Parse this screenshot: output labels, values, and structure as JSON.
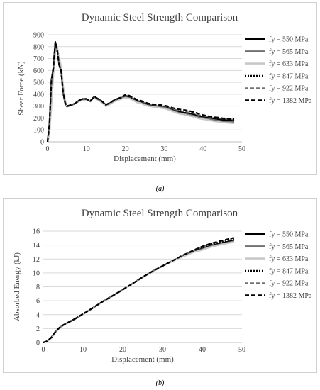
{
  "captions": [
    "(a)",
    "(b)"
  ],
  "chart_data": [
    {
      "type": "line",
      "title": "Dynamic Steel Strength Comparison",
      "xlabel": "Displacement (mm)",
      "ylabel": "Shear Force (kN)",
      "xlim": [
        0,
        50
      ],
      "ylim": [
        0,
        900
      ],
      "xticks": [
        0,
        10,
        20,
        30,
        40,
        50
      ],
      "yticks": [
        0,
        100,
        200,
        300,
        400,
        500,
        600,
        700,
        800,
        900
      ],
      "grid": "horizontal",
      "legend_position": "right",
      "x": [
        0,
        0.5,
        1,
        1.5,
        2,
        2.5,
        3,
        3.5,
        4,
        4.5,
        5,
        5.5,
        6,
        7,
        8,
        9,
        10,
        11,
        12,
        13,
        14,
        15,
        16,
        17,
        18,
        19,
        20,
        21,
        22,
        23,
        24,
        25,
        26,
        27,
        28,
        29,
        30,
        31,
        32,
        33,
        34,
        35,
        36,
        37,
        38,
        39,
        40,
        41,
        42,
        43,
        44,
        45,
        46,
        47,
        48
      ],
      "series": [
        {
          "name": "fy = 550 MPa",
          "color": "#000000",
          "dash": "solid",
          "width": 2.2,
          "values": [
            0,
            150,
            520,
            620,
            840,
            770,
            650,
            600,
            420,
            330,
            300,
            305,
            310,
            320,
            345,
            360,
            360,
            340,
            380,
            360,
            340,
            310,
            325,
            345,
            360,
            370,
            380,
            375,
            360,
            340,
            335,
            320,
            310,
            305,
            300,
            298,
            295,
            285,
            270,
            260,
            250,
            245,
            240,
            235,
            225,
            215,
            210,
            205,
            200,
            195,
            190,
            185,
            185,
            180,
            175
          ]
        },
        {
          "name": "fy = 565 MPa",
          "color": "#707070",
          "dash": "solid",
          "width": 2,
          "values": [
            0,
            120,
            500,
            600,
            820,
            760,
            640,
            590,
            410,
            325,
            295,
            300,
            305,
            320,
            340,
            355,
            355,
            340,
            375,
            355,
            335,
            305,
            320,
            340,
            355,
            365,
            375,
            370,
            355,
            335,
            330,
            315,
            305,
            300,
            295,
            292,
            290,
            278,
            265,
            252,
            242,
            238,
            230,
            225,
            215,
            205,
            200,
            195,
            188,
            182,
            178,
            172,
            170,
            168,
            165
          ]
        },
        {
          "name": "fy = 633 MPa",
          "color": "#c8c8c8",
          "dash": "solid",
          "width": 2.2,
          "values": [
            0,
            60,
            300,
            560,
            750,
            800,
            700,
            640,
            480,
            360,
            300,
            300,
            305,
            320,
            340,
            350,
            355,
            345,
            370,
            350,
            330,
            300,
            315,
            335,
            350,
            360,
            370,
            365,
            350,
            330,
            325,
            310,
            300,
            295,
            290,
            285,
            280,
            270,
            258,
            245,
            235,
            230,
            222,
            215,
            205,
            195,
            190,
            185,
            178,
            172,
            168,
            162,
            160,
            158,
            155
          ]
        },
        {
          "name": "fy = 847 MPa",
          "color": "#000000",
          "dash": "2,2",
          "width": 2,
          "values": [
            0,
            140,
            510,
            615,
            835,
            765,
            645,
            595,
            415,
            328,
            298,
            303,
            308,
            320,
            343,
            358,
            358,
            342,
            378,
            358,
            338,
            310,
            325,
            345,
            360,
            372,
            388,
            380,
            365,
            345,
            340,
            325,
            315,
            310,
            305,
            303,
            300,
            290,
            278,
            268,
            258,
            252,
            248,
            242,
            232,
            222,
            215,
            210,
            205,
            200,
            196,
            192,
            190,
            188,
            185
          ]
        },
        {
          "name": "fy = 922 MPa",
          "color": "#707070",
          "dash": "5,3",
          "width": 1.6,
          "values": [
            0,
            135,
            505,
            610,
            830,
            762,
            642,
            592,
            412,
            326,
            296,
            301,
            306,
            320,
            341,
            356,
            356,
            341,
            376,
            356,
            336,
            308,
            322,
            342,
            358,
            370,
            392,
            385,
            368,
            348,
            342,
            328,
            318,
            312,
            308,
            305,
            302,
            292,
            280,
            270,
            262,
            255,
            250,
            245,
            235,
            225,
            218,
            212,
            208,
            202,
            198,
            194,
            192,
            190,
            188
          ]
        },
        {
          "name": "fy = 1382 MPa",
          "color": "#000000",
          "dash": "6,3",
          "width": 2.2,
          "values": [
            0,
            145,
            515,
            618,
            838,
            768,
            648,
            598,
            418,
            330,
            300,
            304,
            309,
            322,
            346,
            361,
            361,
            344,
            380,
            361,
            341,
            312,
            328,
            348,
            362,
            375,
            395,
            388,
            372,
            352,
            346,
            332,
            322,
            316,
            312,
            310,
            306,
            298,
            286,
            278,
            272,
            268,
            262,
            255,
            245,
            235,
            225,
            218,
            212,
            207,
            203,
            198,
            196,
            192,
            190
          ]
        }
      ]
    },
    {
      "type": "line",
      "title": "Dynamic Steel Strength Comparison",
      "xlabel": "Displacement (mm)",
      "ylabel": "Absorbed Energy (kJ)",
      "xlim": [
        0,
        50
      ],
      "ylim": [
        0,
        16
      ],
      "xticks": [
        0,
        10,
        20,
        30,
        40,
        50
      ],
      "yticks": [
        0,
        2,
        4,
        6,
        8,
        10,
        12,
        14,
        16
      ],
      "grid": "horizontal",
      "legend_position": "right",
      "x": [
        0,
        1,
        2,
        3,
        4,
        5,
        6,
        8,
        10,
        12,
        15,
        18,
        20,
        22,
        25,
        28,
        30,
        32,
        35,
        38,
        40,
        42,
        45,
        48
      ],
      "series": [
        {
          "name": "fy = 550 MPa",
          "color": "#000000",
          "dash": "solid",
          "width": 2.2,
          "values": [
            0,
            0.2,
            0.7,
            1.5,
            2.1,
            2.5,
            2.8,
            3.4,
            4.1,
            4.8,
            5.9,
            6.9,
            7.6,
            8.3,
            9.4,
            10.4,
            11.0,
            11.6,
            12.4,
            13.1,
            13.5,
            13.9,
            14.3,
            14.7
          ]
        },
        {
          "name": "fy = 565 MPa",
          "color": "#707070",
          "dash": "solid",
          "width": 2,
          "values": [
            0,
            0.2,
            0.7,
            1.5,
            2.1,
            2.5,
            2.8,
            3.4,
            4.1,
            4.8,
            5.9,
            6.9,
            7.6,
            8.3,
            9.4,
            10.4,
            11.0,
            11.6,
            12.4,
            13.1,
            13.4,
            13.8,
            14.2,
            14.55
          ]
        },
        {
          "name": "fy = 633 MPa",
          "color": "#c8c8c8",
          "dash": "solid",
          "width": 2.2,
          "values": [
            0,
            0.15,
            0.6,
            1.4,
            2.0,
            2.45,
            2.75,
            3.35,
            4.05,
            4.75,
            5.85,
            6.85,
            7.55,
            8.25,
            9.35,
            10.35,
            10.95,
            11.55,
            12.3,
            13.0,
            13.3,
            13.7,
            14.1,
            14.45
          ]
        },
        {
          "name": "fy = 847 MPa",
          "color": "#000000",
          "dash": "2,2",
          "width": 2,
          "values": [
            0,
            0.2,
            0.7,
            1.5,
            2.1,
            2.5,
            2.8,
            3.4,
            4.1,
            4.8,
            5.9,
            6.9,
            7.6,
            8.3,
            9.4,
            10.4,
            11.0,
            11.6,
            12.5,
            13.2,
            13.7,
            14.1,
            14.5,
            14.9
          ]
        },
        {
          "name": "fy = 922 MPa",
          "color": "#707070",
          "dash": "5,3",
          "width": 1.6,
          "values": [
            0,
            0.2,
            0.7,
            1.5,
            2.1,
            2.5,
            2.8,
            3.4,
            4.1,
            4.8,
            5.9,
            6.9,
            7.6,
            8.3,
            9.4,
            10.4,
            11.0,
            11.6,
            12.5,
            13.25,
            13.75,
            14.15,
            14.6,
            15.0
          ]
        },
        {
          "name": "fy = 1382 MPa",
          "color": "#000000",
          "dash": "6,3",
          "width": 2.2,
          "values": [
            0,
            0.2,
            0.7,
            1.5,
            2.1,
            2.5,
            2.8,
            3.4,
            4.1,
            4.8,
            5.9,
            6.9,
            7.6,
            8.3,
            9.4,
            10.4,
            11.0,
            11.6,
            12.5,
            13.3,
            13.8,
            14.2,
            14.65,
            15.05
          ]
        }
      ]
    }
  ]
}
